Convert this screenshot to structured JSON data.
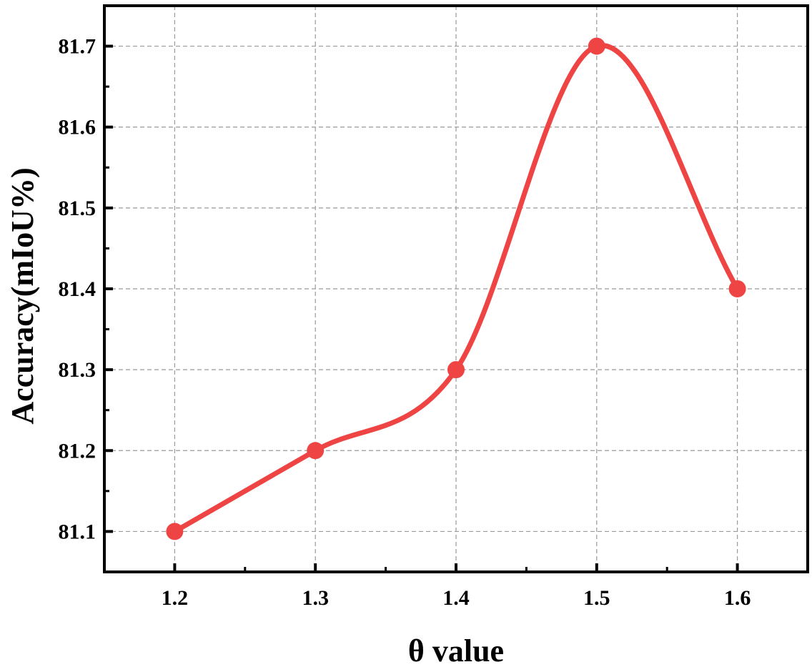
{
  "chart_data": {
    "type": "line",
    "title": "",
    "xlabel": "θ value",
    "ylabel": "Accuracy(mIoU%)",
    "x": [
      1.2,
      1.3,
      1.4,
      1.5,
      1.6
    ],
    "series": [
      {
        "values": [
          81.1,
          81.2,
          81.3,
          81.7,
          81.4
        ],
        "color": "#ef4444"
      }
    ],
    "xlim": [
      1.15,
      1.65
    ],
    "ylim": [
      81.05,
      81.75
    ],
    "xticks": [
      "1.2",
      "1.3",
      "1.4",
      "1.5",
      "1.6"
    ],
    "yticks": [
      "81.1",
      "81.2",
      "81.3",
      "81.4",
      "81.5",
      "81.6",
      "81.7"
    ],
    "grid": true,
    "smooth": true,
    "marker": "circle"
  }
}
